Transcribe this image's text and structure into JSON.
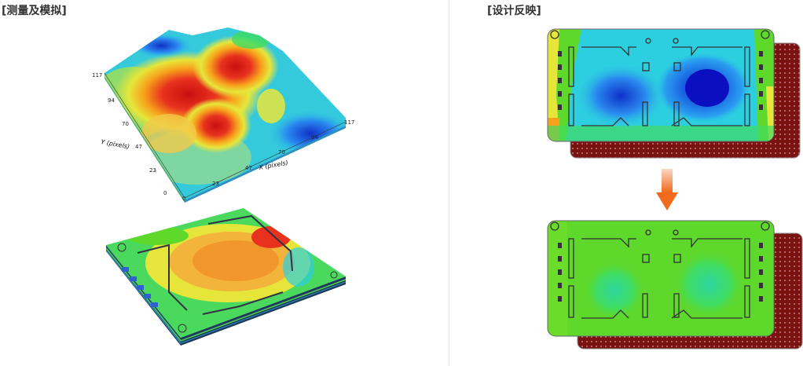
{
  "left_panel": {
    "title": "[测量及模拟]"
  },
  "right_panel": {
    "title": "[设计反映]"
  },
  "surface_plot": {
    "y_axis_label": "Y (pixels)",
    "x_axis_label": "X (pixels)",
    "y_ticks": [
      "117",
      "94",
      "70",
      "47",
      "23",
      "0"
    ],
    "x_ticks": [
      "0",
      "23",
      "47",
      "70",
      "94",
      "117"
    ]
  },
  "colors": {
    "hot": "#e8321e",
    "warm": "#f7a21c",
    "mid": "#e6e63a",
    "green": "#5fd82c",
    "cyan": "#2ccfe0",
    "blue": "#1a5fe0",
    "pcb_dark": "#7a1212",
    "arrow": "#f26a1b"
  }
}
